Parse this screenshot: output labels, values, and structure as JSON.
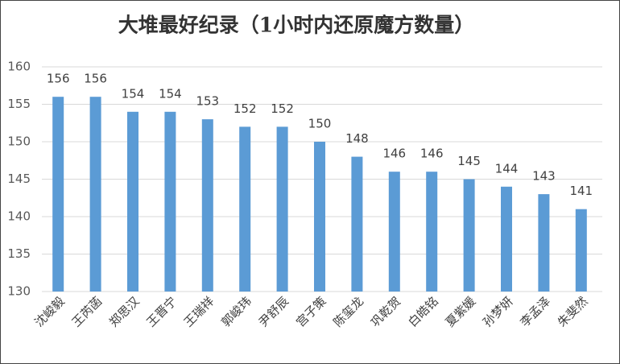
{
  "chart_data": {
    "type": "bar",
    "title": "大堆最好纪录（1小时内还原魔方数量）",
    "categories": [
      "沈峻毅",
      "王芮菡",
      "郑思汉",
      "王晋宁",
      "王瑞祥",
      "郭峻玮",
      "尹舒辰",
      "宫子策",
      "陈玺龙",
      "巩乾贺",
      "白皓铭",
      "夏紫媛",
      "孙梦妍",
      "李孟泽",
      "朱斐然"
    ],
    "values": [
      156,
      156,
      154,
      154,
      153,
      152,
      152,
      150,
      148,
      146,
      146,
      145,
      144,
      143,
      141
    ],
    "color": "#5b9bd5",
    "ylim": [
      130,
      160
    ],
    "yticks": [
      130,
      135,
      140,
      145,
      150,
      155,
      160
    ],
    "grid": true
  }
}
